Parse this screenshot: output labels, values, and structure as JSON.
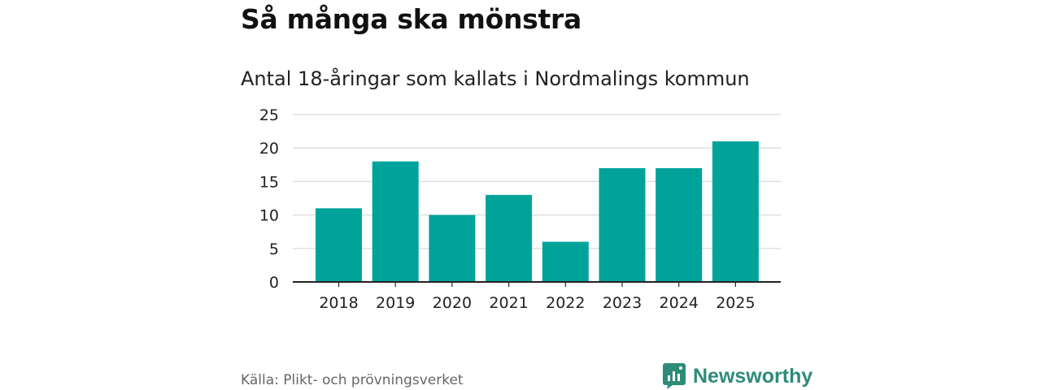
{
  "header": {
    "title": "Så många ska mönstra",
    "subtitle": "Antal 18-åringar som kallats i Nordmalings kommun"
  },
  "chart_data": {
    "type": "bar",
    "title": "Så många ska mönstra",
    "subtitle": "Antal 18-åringar som kallats i Nordmalings kommun",
    "categories": [
      "2018",
      "2019",
      "2020",
      "2021",
      "2022",
      "2023",
      "2024",
      "2025"
    ],
    "values": [
      11,
      18,
      10,
      13,
      6,
      17,
      17,
      21
    ],
    "xlabel": "",
    "ylabel": "",
    "ylim": [
      0,
      25
    ],
    "yticks": [
      "0",
      "5",
      "10",
      "15",
      "20",
      "25"
    ],
    "grid": true,
    "legend": "none",
    "bar_color": "#00a39a"
  },
  "footer": {
    "source": "Källa: Plikt- och prövningsverket",
    "brand": "Newsworthy",
    "brand_icon": "newsworthy-logo-icon",
    "brand_color": "#2e8b7a"
  }
}
